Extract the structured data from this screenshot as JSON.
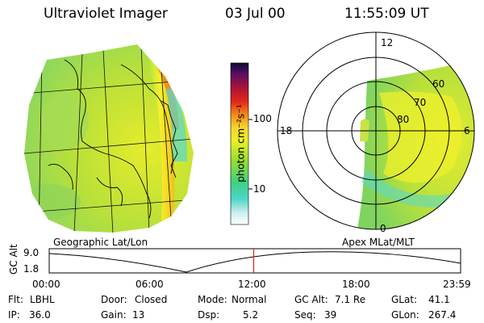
{
  "header": {
    "instrument": "Ultraviolet Imager",
    "date": "03 Jul 00",
    "time": "11:55:09 UT"
  },
  "colorbar": {
    "unit_label": "photon cm⁻²s⁻¹",
    "ticks": [
      "100",
      "10"
    ]
  },
  "polar": {
    "mlt_labels": {
      "top": "12",
      "left": "18",
      "right": "6",
      "bottom": "0"
    },
    "lat_labels": [
      "60",
      "70",
      "80"
    ]
  },
  "panel_labels": {
    "left": "Geographic Lat/Lon",
    "right": "Apex MLat/MLT"
  },
  "altitude_plot": {
    "ylabel": "GC Alt",
    "ytick_top": "9.0",
    "ytick_bottom": "1.8",
    "xticks": [
      "00:00",
      "06:00",
      "12:00",
      "18:00",
      "23:59"
    ],
    "current_time_fraction": 0.497
  },
  "status": {
    "flt_label": "Flt:",
    "flt_value": "LBHL",
    "ip_label": "IP:",
    "ip_value": "36.0",
    "door_label": "Door:",
    "door_value": "Closed",
    "gain_label": "Gain:",
    "gain_value": "13",
    "mode_label": "Mode:",
    "mode_value": "Normal",
    "dsp_label": "Dsp:",
    "dsp_value": "5.2",
    "gcalt_label": "GC Alt:",
    "gcalt_value": "7.1 Re",
    "seq_label": "Seq:",
    "seq_value": "39",
    "glat_label": "GLat:",
    "glat_value": "41.1",
    "glon_label": "GLon:",
    "glon_value": "267.4"
  },
  "colors": {
    "aurora_green": "#9ad82e",
    "aurora_yellow": "#f4ee2a",
    "aurora_cyan": "#56d8d0",
    "aurora_orange": "#f08a1c",
    "alt_marker": "#e02020"
  }
}
